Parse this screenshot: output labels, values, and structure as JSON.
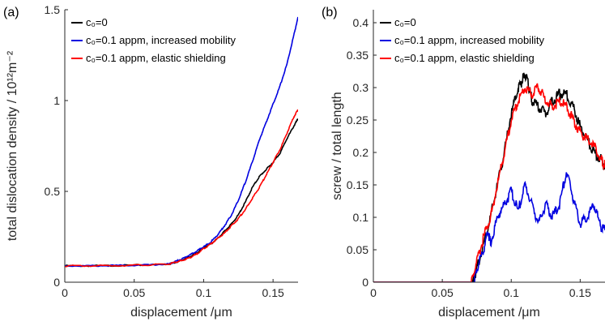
{
  "chart_data": [
    {
      "panel": "(a)",
      "type": "line",
      "xlabel": "displacement /μm",
      "ylabel": "total dislocation density / 10¹²m⁻²",
      "xlim": [
        0,
        0.168
      ],
      "ylim": [
        0,
        1.5
      ],
      "xticks": [
        "0",
        "0.05",
        "0.1",
        "0.15"
      ],
      "yticks": [
        "0",
        "0.5",
        "1",
        "1.5"
      ],
      "legend_position": "top-left",
      "series": [
        {
          "name": "c₀=0",
          "color": "#000000",
          "x": [
            0,
            0.02,
            0.04,
            0.06,
            0.075,
            0.08,
            0.085,
            0.09,
            0.095,
            0.1,
            0.105,
            0.11,
            0.115,
            0.12,
            0.125,
            0.13,
            0.135,
            0.14,
            0.145,
            0.15,
            0.155,
            0.16,
            0.165,
            0.168
          ],
          "y": [
            0.09,
            0.09,
            0.092,
            0.095,
            0.1,
            0.11,
            0.125,
            0.14,
            0.16,
            0.19,
            0.21,
            0.24,
            0.28,
            0.32,
            0.37,
            0.44,
            0.52,
            0.58,
            0.62,
            0.66,
            0.71,
            0.79,
            0.86,
            0.9
          ]
        },
        {
          "name": "c₀=0.1 appm, increased mobility",
          "color": "#0000e0",
          "x": [
            0,
            0.02,
            0.04,
            0.06,
            0.075,
            0.08,
            0.085,
            0.09,
            0.095,
            0.1,
            0.105,
            0.11,
            0.115,
            0.12,
            0.125,
            0.13,
            0.135,
            0.14,
            0.145,
            0.15,
            0.155,
            0.16,
            0.165,
            0.168
          ],
          "y": [
            0.09,
            0.09,
            0.092,
            0.095,
            0.1,
            0.115,
            0.13,
            0.15,
            0.17,
            0.195,
            0.22,
            0.26,
            0.31,
            0.37,
            0.45,
            0.55,
            0.66,
            0.78,
            0.88,
            0.98,
            1.08,
            1.2,
            1.36,
            1.46
          ]
        },
        {
          "name": "c₀=0.1 appm, elastic shielding",
          "color": "#ff0000",
          "x": [
            0,
            0.02,
            0.04,
            0.06,
            0.075,
            0.08,
            0.085,
            0.09,
            0.095,
            0.1,
            0.105,
            0.11,
            0.115,
            0.12,
            0.125,
            0.13,
            0.135,
            0.14,
            0.145,
            0.15,
            0.155,
            0.16,
            0.165,
            0.168
          ],
          "y": [
            0.09,
            0.09,
            0.092,
            0.095,
            0.1,
            0.11,
            0.12,
            0.135,
            0.155,
            0.185,
            0.21,
            0.24,
            0.27,
            0.31,
            0.35,
            0.4,
            0.46,
            0.52,
            0.59,
            0.66,
            0.73,
            0.82,
            0.91,
            0.95
          ]
        }
      ]
    },
    {
      "panel": "(b)",
      "type": "line",
      "xlabel": "displacement /μm",
      "ylabel": "screw / total length",
      "xlim": [
        0,
        0.168
      ],
      "ylim": [
        0,
        0.42
      ],
      "xticks": [
        "0",
        "0.05",
        "0.1",
        "0.15"
      ],
      "yticks": [
        "0",
        "0.05",
        "0.1",
        "0.15",
        "0.2",
        "0.25",
        "0.3",
        "0.35",
        "0.4"
      ],
      "legend_position": "top-left",
      "series": [
        {
          "name": "c₀=0",
          "color": "#000000",
          "x": [
            0,
            0.072,
            0.075,
            0.08,
            0.085,
            0.09,
            0.095,
            0.1,
            0.105,
            0.108,
            0.11,
            0.113,
            0.115,
            0.12,
            0.125,
            0.13,
            0.135,
            0.14,
            0.145,
            0.15,
            0.155,
            0.16,
            0.165,
            0.168
          ],
          "y": [
            0,
            0,
            0.02,
            0.06,
            0.1,
            0.15,
            0.2,
            0.26,
            0.3,
            0.31,
            0.32,
            0.3,
            0.28,
            0.27,
            0.26,
            0.28,
            0.29,
            0.29,
            0.27,
            0.24,
            0.22,
            0.2,
            0.19,
            0.175
          ]
        },
        {
          "name": "c₀=0.1 appm, increased mobility",
          "color": "#0000e0",
          "x": [
            0,
            0.073,
            0.075,
            0.08,
            0.083,
            0.085,
            0.09,
            0.095,
            0.1,
            0.105,
            0.11,
            0.115,
            0.12,
            0.125,
            0.13,
            0.135,
            0.14,
            0.145,
            0.15,
            0.155,
            0.16,
            0.165,
            0.168
          ],
          "y": [
            0,
            0,
            0.02,
            0.05,
            0.08,
            0.06,
            0.1,
            0.12,
            0.14,
            0.11,
            0.15,
            0.12,
            0.09,
            0.12,
            0.1,
            0.12,
            0.17,
            0.13,
            0.09,
            0.1,
            0.12,
            0.085,
            0.08
          ]
        },
        {
          "name": "c₀=0.1 appm, elastic shielding",
          "color": "#ff0000",
          "x": [
            0,
            0.071,
            0.075,
            0.08,
            0.085,
            0.09,
            0.095,
            0.1,
            0.105,
            0.11,
            0.115,
            0.12,
            0.125,
            0.13,
            0.135,
            0.14,
            0.145,
            0.15,
            0.155,
            0.16,
            0.165,
            0.168
          ],
          "y": [
            0,
            0,
            0.03,
            0.07,
            0.1,
            0.15,
            0.2,
            0.25,
            0.28,
            0.3,
            0.29,
            0.3,
            0.28,
            0.27,
            0.28,
            0.27,
            0.25,
            0.23,
            0.22,
            0.21,
            0.19,
            0.18
          ]
        }
      ]
    }
  ]
}
